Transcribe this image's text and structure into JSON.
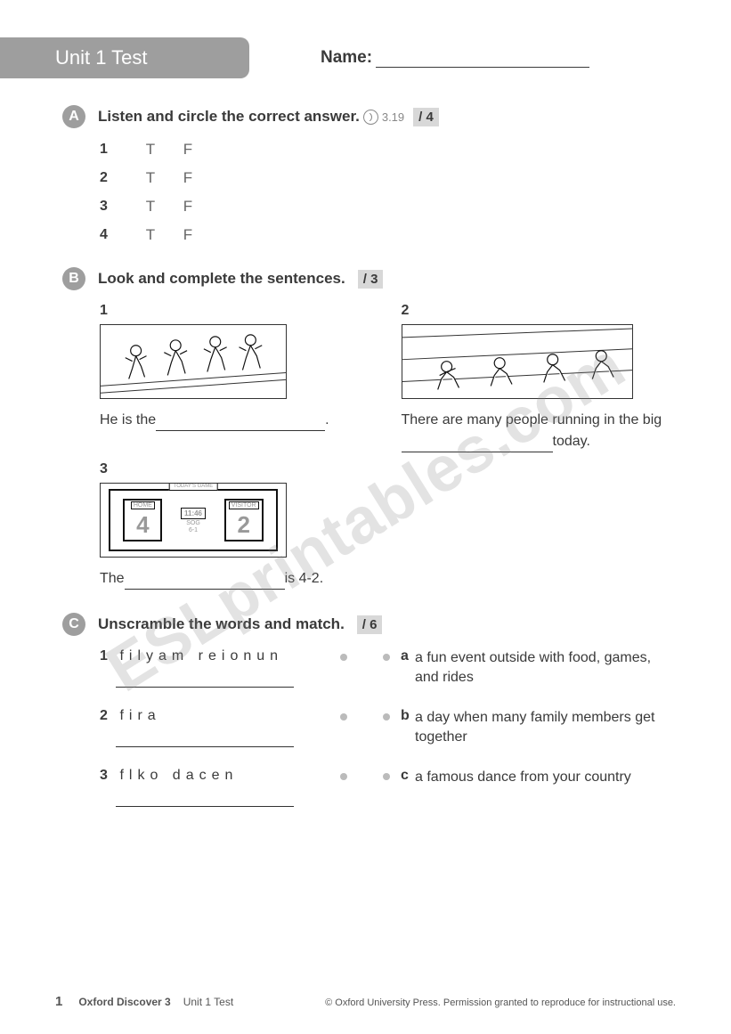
{
  "header": {
    "title": "Unit 1 Test",
    "name_label": "Name:"
  },
  "A": {
    "instruction": "Listen and circle the correct answer.",
    "track": "3.19",
    "score": "/ 4",
    "items": [
      {
        "n": "1",
        "t": "T",
        "f": "F"
      },
      {
        "n": "2",
        "t": "T",
        "f": "F"
      },
      {
        "n": "3",
        "t": "T",
        "f": "F"
      },
      {
        "n": "4",
        "t": "T",
        "f": "F"
      }
    ]
  },
  "B": {
    "instruction": "Look and complete the sentences.",
    "score": "/ 3",
    "i1": {
      "n": "1",
      "pre": "He is the",
      "post": "."
    },
    "i2": {
      "n": "2",
      "text1": "There are many people running in the",
      "text2": "big",
      "text3": "today."
    },
    "i3": {
      "n": "3",
      "pre": "The",
      "post": "is 4-2.",
      "home_l": "HOME",
      "home_v": "4",
      "vis_l": "VISITOR",
      "vis_v": "2",
      "time": "11:46",
      "sog": "SOG",
      "sogv": "6-1",
      "today": "TODAY'S GAME"
    }
  },
  "C": {
    "instruction": "Unscramble the words and match.",
    "score": "/ 6",
    "left": [
      {
        "n": "1",
        "w": "filyam  reionun"
      },
      {
        "n": "2",
        "w": "fira"
      },
      {
        "n": "3",
        "w": "flko  dacen"
      }
    ],
    "right": [
      {
        "l": "a",
        "t": "a fun event outside with food, games, and rides"
      },
      {
        "l": "b",
        "t": "a day when many family members get together"
      },
      {
        "l": "c",
        "t": "a famous dance from your country"
      }
    ]
  },
  "watermark": "ESLprintables.com",
  "footer": {
    "page": "1",
    "book": "Oxford Discover 3",
    "unit": "Unit 1 Test",
    "copy": "© Oxford University Press. Permission granted to reproduce for instructional use."
  }
}
